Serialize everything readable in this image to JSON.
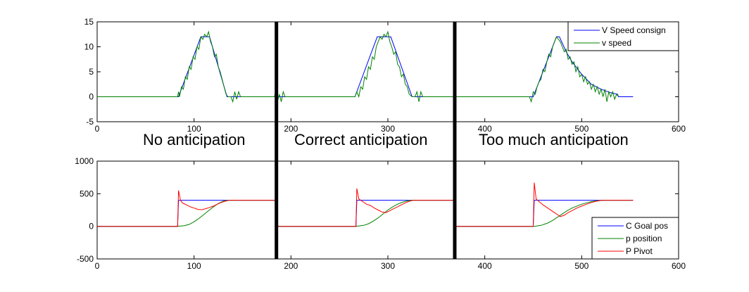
{
  "chart_data": [
    {
      "type": "line",
      "title": "",
      "xlabel": "",
      "ylabel": "",
      "xlim": [
        0,
        600
      ],
      "ylim": [
        -5,
        15
      ],
      "xticks": [
        0,
        100,
        200,
        300,
        400,
        500,
        600
      ],
      "yticks": [
        -5,
        0,
        5,
        10,
        15
      ],
      "legend_position": "top-right",
      "series": [
        {
          "name": "V Speed consign",
          "color": "#0000ff",
          "points": [
            [
              0,
              0
            ],
            [
              84,
              0
            ],
            [
              107,
              12
            ],
            [
              116,
              12
            ],
            [
              134,
              0
            ],
            [
              266,
              0
            ],
            [
              289,
              12
            ],
            [
              303,
              12
            ],
            [
              325,
              0
            ],
            [
              450,
              0
            ],
            [
              474,
              12
            ],
            [
              477,
              12
            ],
            [
              484,
              9
            ],
            [
              490,
              7
            ],
            [
              500,
              4.5
            ],
            [
              510,
              2.5
            ],
            [
              520,
              1.5
            ],
            [
              530,
              0.8
            ],
            [
              537,
              0.5
            ],
            [
              538,
              0
            ],
            [
              553,
              0
            ]
          ]
        },
        {
          "name": "v speed",
          "color": "#008000",
          "points": [
            [
              0,
              0
            ],
            [
              83,
              0
            ],
            [
              84,
              1
            ],
            [
              85,
              0
            ],
            [
              87,
              2
            ],
            [
              89,
              1.5
            ],
            [
              91,
              4
            ],
            [
              93,
              3.5
            ],
            [
              95,
              6
            ],
            [
              97,
              5.5
            ],
            [
              99,
              8
            ],
            [
              101,
              7.5
            ],
            [
              103,
              10
            ],
            [
              105,
              9.5
            ],
            [
              107,
              12
            ],
            [
              109,
              11.5
            ],
            [
              111,
              12.5
            ],
            [
              113,
              12
            ],
            [
              115,
              13
            ],
            [
              117,
              11
            ],
            [
              119,
              10
            ],
            [
              121,
              8
            ],
            [
              123,
              8.5
            ],
            [
              125,
              6
            ],
            [
              127,
              5
            ],
            [
              129,
              3.5
            ],
            [
              131,
              2
            ],
            [
              133,
              0.5
            ],
            [
              135,
              0
            ],
            [
              138,
              0
            ],
            [
              140,
              -1
            ],
            [
              142,
              1
            ],
            [
              144,
              -0.5
            ],
            [
              146,
              1
            ],
            [
              148,
              0
            ],
            [
              183,
              0
            ],
            [
              184,
              1
            ],
            [
              186,
              -1
            ],
            [
              188,
              0.5
            ],
            [
              190,
              -1
            ],
            [
              192,
              1
            ],
            [
              194,
              0
            ],
            [
              266,
              0
            ],
            [
              268,
              1
            ],
            [
              270,
              0
            ],
            [
              272,
              2
            ],
            [
              274,
              1.5
            ],
            [
              276,
              4
            ],
            [
              278,
              3.5
            ],
            [
              280,
              6
            ],
            [
              282,
              5.5
            ],
            [
              284,
              8
            ],
            [
              286,
              7.5
            ],
            [
              288,
              10
            ],
            [
              290,
              11
            ],
            [
              292,
              12
            ],
            [
              294,
              11.5
            ],
            [
              296,
              12.5
            ],
            [
              298,
              12
            ],
            [
              300,
              13
            ],
            [
              302,
              11
            ],
            [
              304,
              10
            ],
            [
              306,
              8.5
            ],
            [
              308,
              9
            ],
            [
              310,
              6.5
            ],
            [
              312,
              6
            ],
            [
              314,
              4
            ],
            [
              316,
              4.5
            ],
            [
              318,
              2.5
            ],
            [
              320,
              2
            ],
            [
              322,
              0.5
            ],
            [
              325,
              0
            ],
            [
              328,
              0
            ],
            [
              330,
              1
            ],
            [
              332,
              -1
            ],
            [
              334,
              1
            ],
            [
              336,
              0
            ],
            [
              446,
              0
            ],
            [
              448,
              -1
            ],
            [
              450,
              1
            ],
            [
              452,
              0.5
            ],
            [
              454,
              2
            ],
            [
              456,
              3
            ],
            [
              458,
              3.5
            ],
            [
              460,
              5.5
            ],
            [
              462,
              5
            ],
            [
              464,
              7
            ],
            [
              466,
              8.5
            ],
            [
              468,
              8
            ],
            [
              470,
              10
            ],
            [
              472,
              11
            ],
            [
              474,
              12
            ],
            [
              476,
              11.5
            ],
            [
              478,
              11
            ],
            [
              480,
              10
            ],
            [
              482,
              9
            ],
            [
              484,
              9.5
            ],
            [
              486,
              7.5
            ],
            [
              488,
              8
            ],
            [
              490,
              6.5
            ],
            [
              492,
              7
            ],
            [
              494,
              5
            ],
            [
              496,
              6
            ],
            [
              498,
              4
            ],
            [
              500,
              4.5
            ],
            [
              502,
              3
            ],
            [
              504,
              4
            ],
            [
              506,
              2.5
            ],
            [
              508,
              3
            ],
            [
              510,
              1.5
            ],
            [
              512,
              2.5
            ],
            [
              514,
              1
            ],
            [
              516,
              2
            ],
            [
              518,
              0.5
            ],
            [
              520,
              1.5
            ],
            [
              522,
              0
            ],
            [
              524,
              1.5
            ],
            [
              526,
              -1
            ],
            [
              528,
              1
            ],
            [
              530,
              0
            ],
            [
              532,
              1
            ],
            [
              534,
              -0.5
            ],
            [
              536,
              0.5
            ],
            [
              538,
              0
            ]
          ]
        }
      ]
    },
    {
      "type": "line",
      "title": "",
      "xlabel": "",
      "ylabel": "",
      "xlim": [
        0,
        600
      ],
      "ylim": [
        -500,
        1000
      ],
      "xticks": [
        0,
        100,
        200,
        300,
        400,
        500,
        600
      ],
      "yticks": [
        -500,
        0,
        500,
        1000
      ],
      "legend_position": "bottom-right",
      "series": [
        {
          "name": "C Goal pos",
          "color": "#0000ff",
          "points": [
            [
              0,
              0
            ],
            [
              83,
              0
            ],
            [
              84,
              400
            ],
            [
              185,
              400
            ],
            [
              185,
              0
            ],
            [
              267,
              0
            ],
            [
              268,
              400
            ],
            [
              369,
              400
            ],
            [
              369,
              0
            ],
            [
              450,
              0
            ],
            [
              451,
              400
            ],
            [
              553,
              400
            ]
          ]
        },
        {
          "name": "p position",
          "color": "#008000",
          "points": [
            [
              0,
              0
            ],
            [
              83,
              0
            ],
            [
              90,
              10
            ],
            [
              95,
              30
            ],
            [
              100,
              70
            ],
            [
              105,
              120
            ],
            [
              110,
              180
            ],
            [
              115,
              240
            ],
            [
              120,
              300
            ],
            [
              125,
              350
            ],
            [
              130,
              385
            ],
            [
              135,
              400
            ],
            [
              185,
              400
            ],
            [
              185,
              0
            ],
            [
              186,
              10
            ],
            [
              188,
              0
            ],
            [
              267,
              0
            ],
            [
              275,
              15
            ],
            [
              280,
              40
            ],
            [
              285,
              80
            ],
            [
              290,
              130
            ],
            [
              295,
              190
            ],
            [
              300,
              250
            ],
            [
              305,
              300
            ],
            [
              310,
              340
            ],
            [
              315,
              370
            ],
            [
              320,
              390
            ],
            [
              325,
              400
            ],
            [
              369,
              400
            ],
            [
              369,
              0
            ],
            [
              451,
              0
            ],
            [
              458,
              15
            ],
            [
              465,
              50
            ],
            [
              470,
              90
            ],
            [
              475,
              140
            ],
            [
              480,
              190
            ],
            [
              485,
              240
            ],
            [
              490,
              280
            ],
            [
              495,
              310
            ],
            [
              500,
              340
            ],
            [
              505,
              360
            ],
            [
              510,
              378
            ],
            [
              515,
              390
            ],
            [
              520,
              398
            ],
            [
              525,
              400
            ],
            [
              553,
              400
            ]
          ]
        },
        {
          "name": "P Pivot",
          "color": "#ff0000",
          "points": [
            [
              0,
              0
            ],
            [
              83,
              0
            ],
            [
              84,
              550
            ],
            [
              86,
              400
            ],
            [
              88,
              360
            ],
            [
              92,
              330
            ],
            [
              96,
              300
            ],
            [
              100,
              280
            ],
            [
              104,
              260
            ],
            [
              108,
              255
            ],
            [
              112,
              270
            ],
            [
              116,
              290
            ],
            [
              120,
              310
            ],
            [
              124,
              340
            ],
            [
              128,
              365
            ],
            [
              132,
              385
            ],
            [
              136,
              400
            ],
            [
              185,
              400
            ],
            [
              185,
              0
            ],
            [
              267,
              0
            ],
            [
              268,
              580
            ],
            [
              270,
              420
            ],
            [
              274,
              380
            ],
            [
              278,
              340
            ],
            [
              282,
              320
            ],
            [
              286,
              280
            ],
            [
              290,
              250
            ],
            [
              294,
              220
            ],
            [
              298,
              210
            ],
            [
              302,
              240
            ],
            [
              306,
              270
            ],
            [
              310,
              300
            ],
            [
              314,
              330
            ],
            [
              318,
              360
            ],
            [
              322,
              385
            ],
            [
              326,
              400
            ],
            [
              369,
              400
            ],
            [
              369,
              0
            ],
            [
              450,
              0
            ],
            [
              451,
              670
            ],
            [
              453,
              420
            ],
            [
              456,
              380
            ],
            [
              460,
              330
            ],
            [
              465,
              280
            ],
            [
              470,
              230
            ],
            [
              475,
              180
            ],
            [
              478,
              150
            ],
            [
              482,
              170
            ],
            [
              486,
              210
            ],
            [
              490,
              240
            ],
            [
              495,
              280
            ],
            [
              500,
              310
            ],
            [
              505,
              340
            ],
            [
              510,
              365
            ],
            [
              515,
              385
            ],
            [
              520,
              398
            ],
            [
              525,
              400
            ],
            [
              553,
              400
            ]
          ]
        }
      ]
    }
  ],
  "annotations": [
    "No anticipation",
    "Correct anticipation",
    "Too much anticipation"
  ],
  "separators_x": [
    185,
    369
  ]
}
